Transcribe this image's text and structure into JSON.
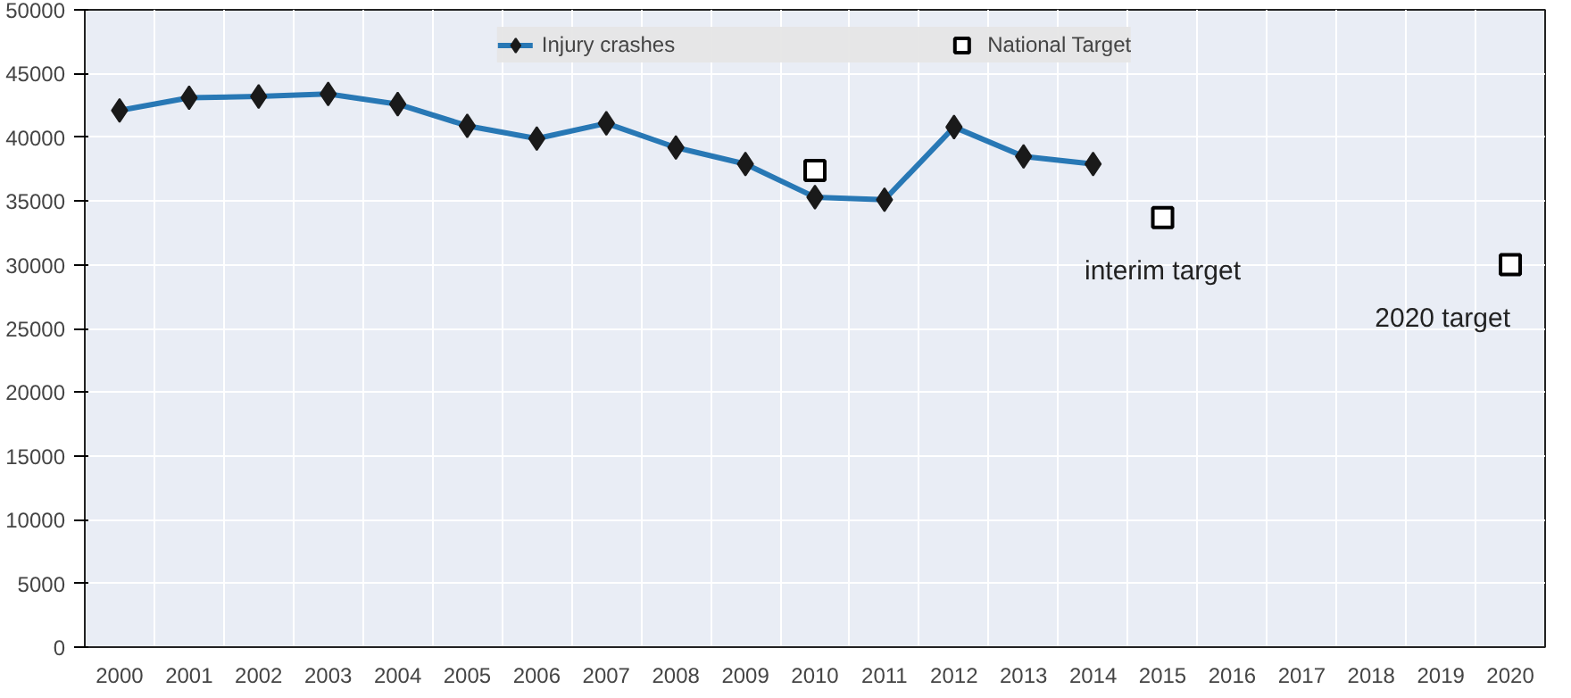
{
  "chart_data": {
    "type": "line",
    "categories": [
      "2000",
      "2001",
      "2002",
      "2003",
      "2004",
      "2005",
      "2006",
      "2007",
      "2008",
      "2009",
      "2010",
      "2011",
      "2012",
      "2013",
      "2014",
      "2015",
      "2016",
      "2017",
      "2018",
      "2019",
      "2020"
    ],
    "series": [
      {
        "name": "Injury crashes",
        "color": "#2878b5",
        "marker": "diamond",
        "values": [
          42100,
          43100,
          43200,
          43400,
          42600,
          40900,
          39900,
          41100,
          39200,
          37900,
          35300,
          35100,
          40800,
          38500,
          37900,
          null,
          null,
          null,
          null,
          null,
          null
        ]
      },
      {
        "name": "National Target",
        "type": "scatter",
        "color": "#000000",
        "marker": "square",
        "values": [
          null,
          null,
          null,
          null,
          null,
          null,
          null,
          null,
          null,
          null,
          37400,
          null,
          null,
          null,
          null,
          33700,
          null,
          null,
          null,
          null,
          30000
        ]
      }
    ],
    "ylim": [
      0,
      50000
    ],
    "yticks": [
      0,
      5000,
      10000,
      15000,
      20000,
      25000,
      30000,
      35000,
      40000,
      45000,
      50000
    ],
    "grid": true,
    "legend": "top",
    "line_style": "solid",
    "annotations": [
      {
        "text": "interim target",
        "x": "2015",
        "y": 33700
      },
      {
        "text": "2020 target",
        "x": "2020",
        "y": 30000
      }
    ]
  }
}
